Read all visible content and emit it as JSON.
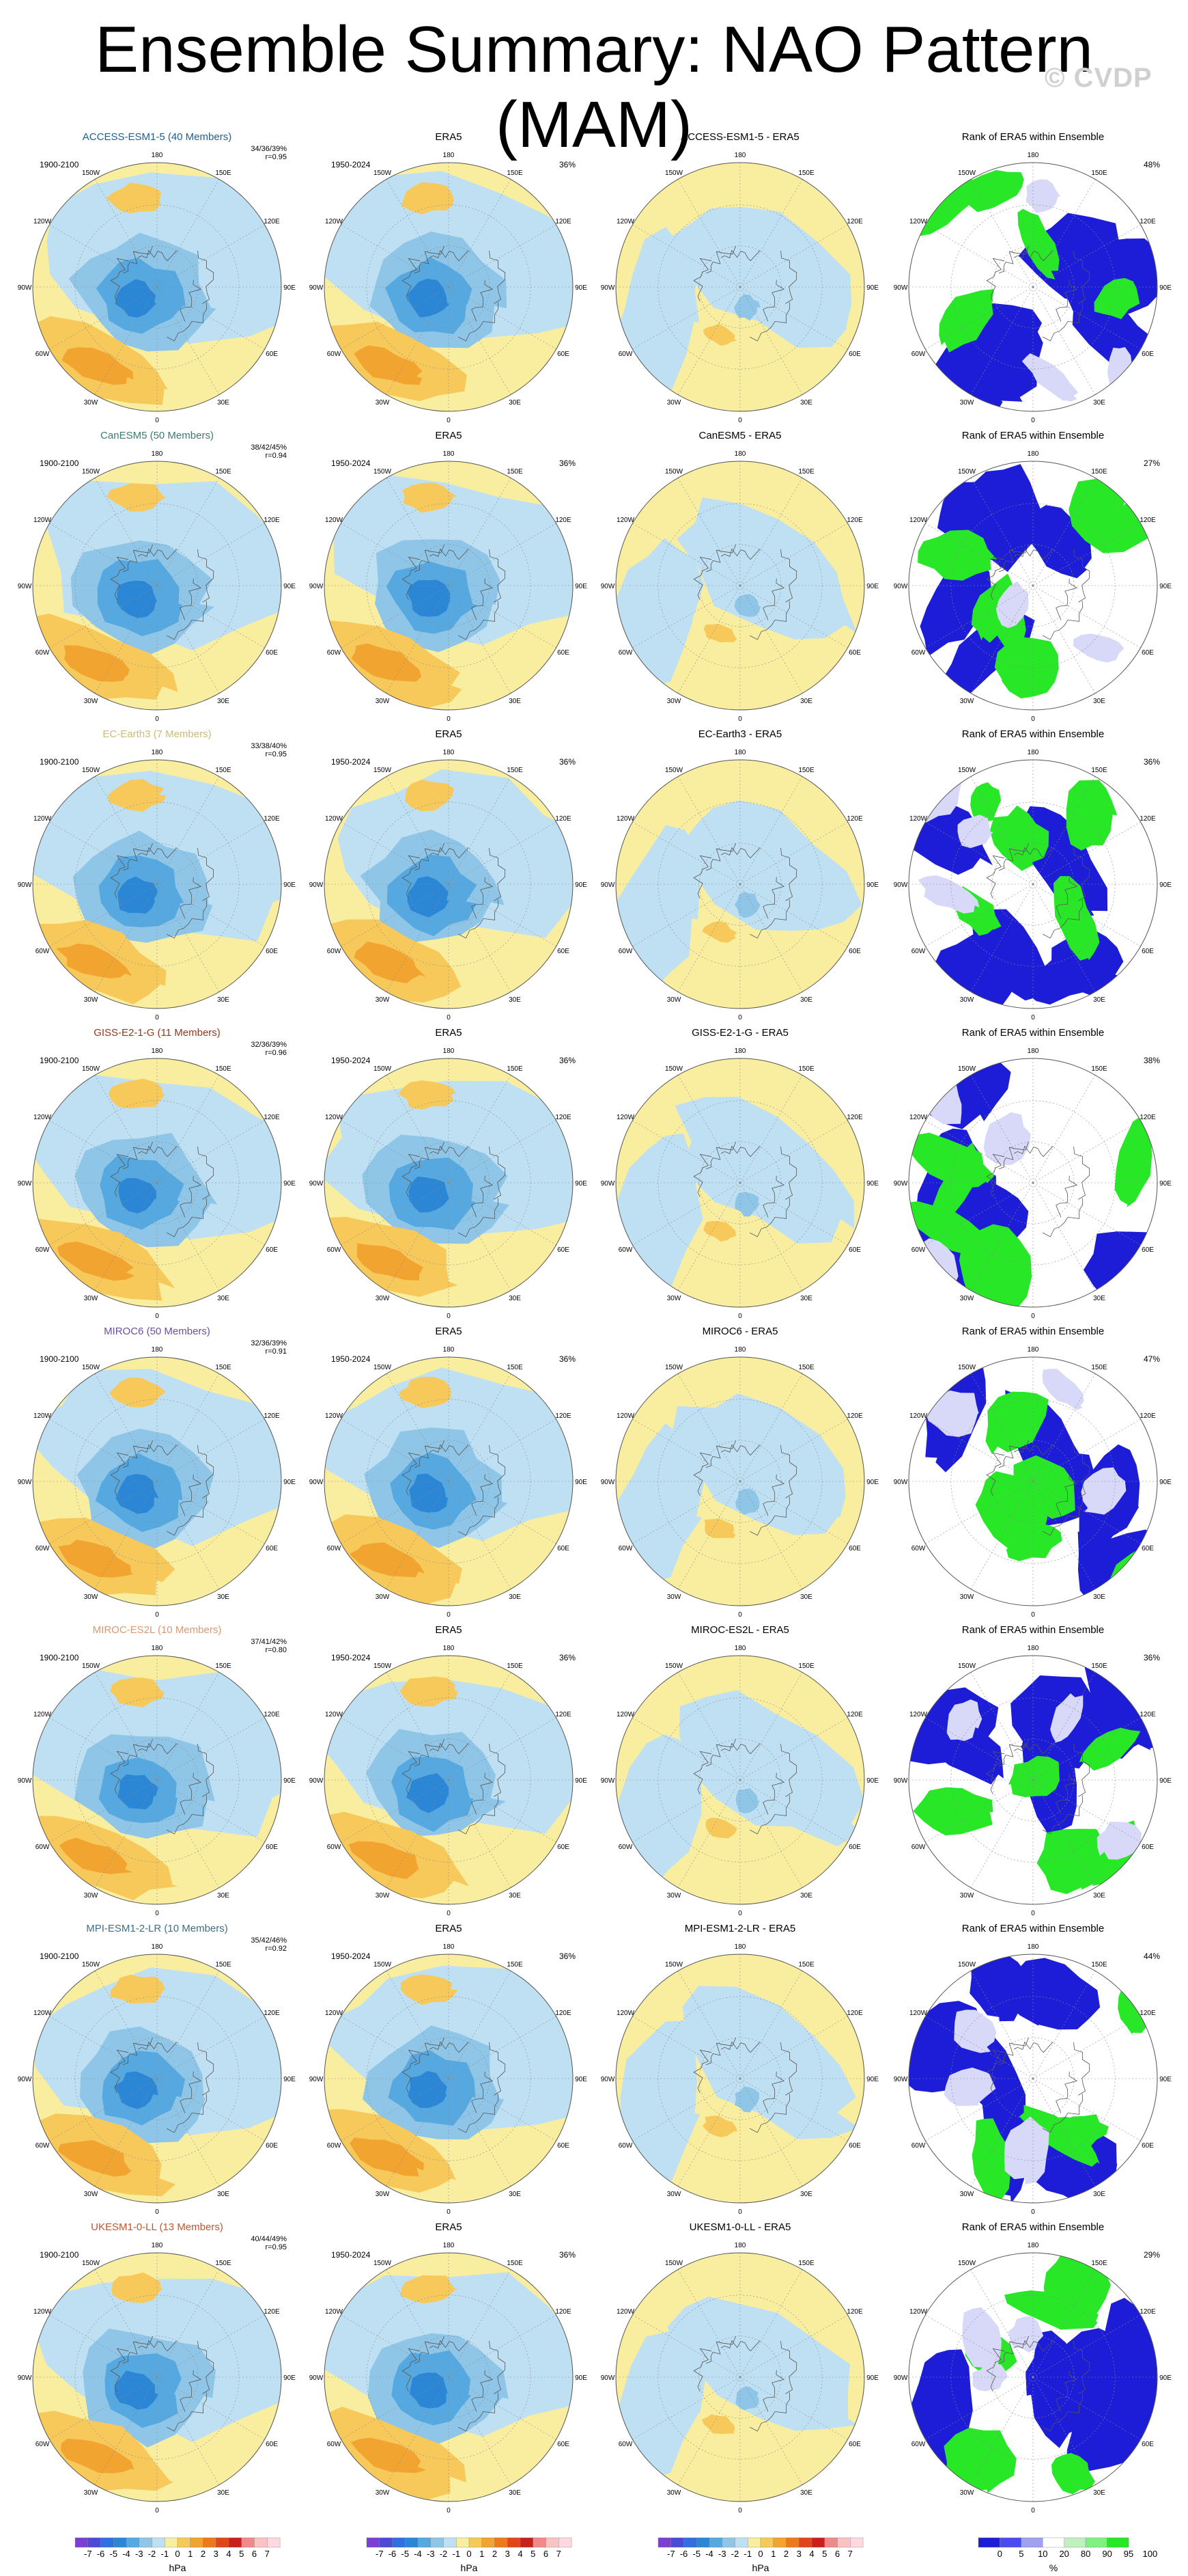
{
  "title": "Ensemble Summary: NAO Pattern (MAM)",
  "watermark": "© CVDP",
  "chart_data": {
    "type": "polar-map-panels",
    "season": "MAM",
    "projection": "north-polar-stereographic",
    "contour_levels_hPa": [
      -7,
      -6,
      -5,
      -4,
      -3,
      -2,
      -1,
      0,
      1,
      2,
      3,
      4,
      5,
      6,
      7
    ],
    "rank_levels_pct": [
      0,
      5,
      10,
      20,
      80,
      90,
      95,
      100
    ],
    "longitude_labels": [
      "180",
      "150W",
      "120W",
      "90W",
      "60W",
      "30W",
      "0",
      "30E",
      "60E",
      "90E",
      "120E",
      "150E"
    ],
    "panel_titles": {
      "obs": "ERA5",
      "rank": "Rank of ERA5 within Ensemble",
      "obs_period": "1950-2024",
      "obs_pct": "36%"
    },
    "rows": [
      {
        "model": "ACCESS-ESM1-5 (40 Members)",
        "color": "#1f5f8f",
        "period": "1900-2100",
        "stats1": "34/36/39%",
        "stats2": "r=0.95",
        "diff_title": "ACCESS-ESM1-5 - ERA5",
        "rank_pct": "48%"
      },
      {
        "model": "CanESM5 (50 Members)",
        "color": "#3f7a6e",
        "period": "1900-2100",
        "stats1": "38/42/45%",
        "stats2": "r=0.94",
        "diff_title": "CanESM5 - ERA5",
        "rank_pct": "27%"
      },
      {
        "model": "EC-Earth3 (7 Members)",
        "color": "#cdbb75",
        "period": "1900-2100",
        "stats1": "33/38/40%",
        "stats2": "r=0.95",
        "diff_title": "EC-Earth3 - ERA5",
        "rank_pct": "36%"
      },
      {
        "model": "GISS-E2-1-G (11 Members)",
        "color": "#8b3a1f",
        "period": "1900-2100",
        "stats1": "32/36/39%",
        "stats2": "r=0.96",
        "diff_title": "GISS-E2-1-G - ERA5",
        "rank_pct": "38%"
      },
      {
        "model": "MIROC6 (50 Members)",
        "color": "#6a4fa0",
        "period": "1900-2100",
        "stats1": "32/36/39%",
        "stats2": "r=0.91",
        "diff_title": "MIROC6 - ERA5",
        "rank_pct": "47%"
      },
      {
        "model": "MIROC-ES2L (10 Members)",
        "color": "#d89a74",
        "period": "1900-2100",
        "stats1": "37/41/42%",
        "stats2": "r=0.80",
        "diff_title": "MIROC-ES2L - ERA5",
        "rank_pct": "36%"
      },
      {
        "model": "MPI-ESM1-2-LR (10 Members)",
        "color": "#3d6f86",
        "period": "1900-2100",
        "stats1": "35/42/46%",
        "stats2": "r=0.92",
        "diff_title": "MPI-ESM1-2-LR - ERA5",
        "rank_pct": "44%"
      },
      {
        "model": "UKESM1-0-LL (13 Members)",
        "color": "#c2552f",
        "period": "1900-2100",
        "stats1": "40/44/49%",
        "stats2": "r=0.95",
        "diff_title": "UKESM1-0-LL - ERA5",
        "rank_pct": "29%"
      }
    ],
    "colorbars": [
      {
        "labels": [
          "-7",
          "-6",
          "-5",
          "-4",
          "-3",
          "-2",
          "-1",
          "0",
          "1",
          "2",
          "3",
          "4",
          "5",
          "6",
          "7"
        ],
        "unit": "hPa"
      },
      {
        "labels": [
          "-7",
          "-6",
          "-5",
          "-4",
          "-3",
          "-2",
          "-1",
          "0",
          "1",
          "2",
          "3",
          "4",
          "5",
          "6",
          "7"
        ],
        "unit": "hPa"
      },
      {
        "labels": [
          "-7",
          "-6",
          "-5",
          "-4",
          "-3",
          "-2",
          "-1",
          "0",
          "1",
          "2",
          "3",
          "4",
          "5",
          "6",
          "7"
        ],
        "unit": "hPa"
      },
      {
        "labels": [
          "0",
          "5",
          "10",
          "20",
          "80",
          "90",
          "95",
          "100"
        ],
        "unit": "%"
      }
    ]
  }
}
